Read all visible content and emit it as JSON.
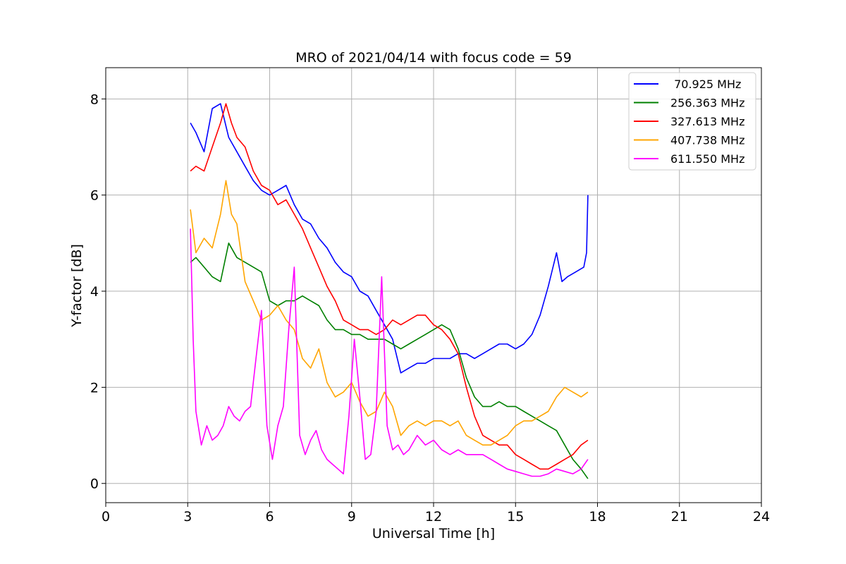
{
  "chart_data": {
    "type": "line",
    "title": "MRO of 2021/04/14 with focus code = 59",
    "xlabel": "Universal Time [h]",
    "ylabel": "Y-factor [dB]",
    "xlim": [
      0,
      24
    ],
    "ylim": [
      -0.4,
      8.65
    ],
    "xticks": [
      0,
      3,
      6,
      9,
      12,
      15,
      18,
      21,
      24
    ],
    "yticks": [
      0,
      2,
      4,
      6,
      8
    ],
    "grid": true,
    "legend_position": "top-right",
    "series": [
      {
        "name": " 70.925 MHz",
        "color": "#0000ff",
        "x": [
          3.1,
          3.3,
          3.6,
          3.9,
          4.2,
          4.5,
          4.8,
          5.1,
          5.4,
          5.7,
          6.0,
          6.3,
          6.6,
          6.9,
          7.2,
          7.5,
          7.8,
          8.1,
          8.4,
          8.7,
          9.0,
          9.3,
          9.6,
          9.9,
          10.2,
          10.5,
          10.8,
          11.1,
          11.4,
          11.7,
          12.0,
          12.3,
          12.6,
          12.9,
          13.2,
          13.5,
          13.8,
          14.1,
          14.4,
          14.7,
          15.0,
          15.3,
          15.6,
          15.9,
          16.2,
          16.5,
          16.7,
          16.9,
          17.2,
          17.5,
          17.6,
          17.65
        ],
        "y": [
          7.5,
          7.3,
          6.9,
          7.8,
          7.9,
          7.2,
          6.9,
          6.6,
          6.3,
          6.1,
          6.0,
          6.1,
          6.2,
          5.8,
          5.5,
          5.4,
          5.1,
          4.9,
          4.6,
          4.4,
          4.3,
          4.0,
          3.9,
          3.6,
          3.3,
          3.0,
          2.3,
          2.4,
          2.5,
          2.5,
          2.6,
          2.6,
          2.6,
          2.7,
          2.7,
          2.6,
          2.7,
          2.8,
          2.9,
          2.9,
          2.8,
          2.9,
          3.1,
          3.5,
          4.1,
          4.8,
          4.2,
          4.3,
          4.4,
          4.5,
          4.8,
          6.0
        ]
      },
      {
        "name": "256.363 MHz",
        "color": "#008000",
        "x": [
          3.1,
          3.3,
          3.6,
          3.9,
          4.2,
          4.5,
          4.8,
          5.1,
          5.4,
          5.7,
          6.0,
          6.3,
          6.6,
          6.9,
          7.2,
          7.5,
          7.8,
          8.1,
          8.4,
          8.7,
          9.0,
          9.3,
          9.6,
          9.9,
          10.2,
          10.5,
          10.8,
          11.1,
          11.4,
          11.7,
          12.0,
          12.3,
          12.6,
          12.9,
          13.2,
          13.5,
          13.8,
          14.1,
          14.4,
          14.7,
          15.0,
          15.3,
          15.6,
          15.9,
          16.2,
          16.5,
          16.8,
          17.1,
          17.4,
          17.65
        ],
        "y": [
          4.6,
          4.7,
          4.5,
          4.3,
          4.2,
          5.0,
          4.7,
          4.6,
          4.5,
          4.4,
          3.8,
          3.7,
          3.8,
          3.8,
          3.9,
          3.8,
          3.7,
          3.4,
          3.2,
          3.2,
          3.1,
          3.1,
          3.0,
          3.0,
          3.0,
          2.9,
          2.8,
          2.9,
          3.0,
          3.1,
          3.2,
          3.3,
          3.2,
          2.8,
          2.2,
          1.8,
          1.6,
          1.6,
          1.7,
          1.6,
          1.6,
          1.5,
          1.4,
          1.3,
          1.2,
          1.1,
          0.8,
          0.5,
          0.3,
          0.1
        ]
      },
      {
        "name": "327.613 MHz",
        "color": "#ff0000",
        "x": [
          3.1,
          3.3,
          3.6,
          3.9,
          4.2,
          4.4,
          4.6,
          4.8,
          5.1,
          5.4,
          5.7,
          6.0,
          6.3,
          6.6,
          6.9,
          7.2,
          7.5,
          7.8,
          8.1,
          8.4,
          8.7,
          9.0,
          9.3,
          9.6,
          9.9,
          10.2,
          10.5,
          10.8,
          11.1,
          11.4,
          11.7,
          12.0,
          12.3,
          12.6,
          12.9,
          13.2,
          13.5,
          13.8,
          14.1,
          14.4,
          14.7,
          15.0,
          15.3,
          15.6,
          15.9,
          16.2,
          16.5,
          16.8,
          17.1,
          17.4,
          17.65
        ],
        "y": [
          6.5,
          6.6,
          6.5,
          7.0,
          7.5,
          7.9,
          7.5,
          7.2,
          7.0,
          6.5,
          6.2,
          6.1,
          5.8,
          5.9,
          5.6,
          5.3,
          4.9,
          4.5,
          4.1,
          3.8,
          3.4,
          3.3,
          3.2,
          3.2,
          3.1,
          3.2,
          3.4,
          3.3,
          3.4,
          3.5,
          3.5,
          3.3,
          3.2,
          3.0,
          2.7,
          2.0,
          1.4,
          1.0,
          0.9,
          0.8,
          0.8,
          0.6,
          0.5,
          0.4,
          0.3,
          0.3,
          0.4,
          0.5,
          0.6,
          0.8,
          0.9
        ]
      },
      {
        "name": "407.738 MHz",
        "color": "#ffa500",
        "x": [
          3.1,
          3.3,
          3.6,
          3.9,
          4.2,
          4.4,
          4.6,
          4.8,
          5.1,
          5.4,
          5.7,
          6.0,
          6.3,
          6.6,
          6.9,
          7.2,
          7.5,
          7.8,
          8.1,
          8.4,
          8.7,
          9.0,
          9.3,
          9.6,
          9.9,
          10.2,
          10.5,
          10.8,
          11.1,
          11.4,
          11.7,
          12.0,
          12.3,
          12.6,
          12.9,
          13.2,
          13.5,
          13.8,
          14.1,
          14.4,
          14.7,
          15.0,
          15.3,
          15.6,
          15.9,
          16.2,
          16.5,
          16.8,
          17.1,
          17.4,
          17.65
        ],
        "y": [
          5.7,
          4.8,
          5.1,
          4.9,
          5.6,
          6.3,
          5.6,
          5.4,
          4.2,
          3.8,
          3.4,
          3.5,
          3.7,
          3.4,
          3.2,
          2.6,
          2.4,
          2.8,
          2.1,
          1.8,
          1.9,
          2.1,
          1.7,
          1.4,
          1.5,
          1.9,
          1.6,
          1.0,
          1.2,
          1.3,
          1.2,
          1.3,
          1.3,
          1.2,
          1.3,
          1.0,
          0.9,
          0.8,
          0.8,
          0.9,
          1.0,
          1.2,
          1.3,
          1.3,
          1.4,
          1.5,
          1.8,
          2.0,
          1.9,
          1.8,
          1.9
        ]
      },
      {
        "name": "611.550 MHz",
        "color": "#ff00ff",
        "x": [
          3.1,
          3.2,
          3.3,
          3.5,
          3.7,
          3.9,
          4.1,
          4.3,
          4.5,
          4.7,
          4.9,
          5.1,
          5.3,
          5.5,
          5.7,
          5.9,
          6.1,
          6.3,
          6.5,
          6.7,
          6.9,
          7.1,
          7.3,
          7.5,
          7.7,
          7.9,
          8.1,
          8.3,
          8.5,
          8.7,
          8.9,
          9.1,
          9.3,
          9.5,
          9.7,
          9.9,
          10.1,
          10.3,
          10.5,
          10.7,
          10.9,
          11.1,
          11.4,
          11.7,
          12.0,
          12.3,
          12.6,
          12.9,
          13.2,
          13.5,
          13.8,
          14.1,
          14.4,
          14.7,
          15.0,
          15.3,
          15.6,
          15.9,
          16.2,
          16.5,
          16.8,
          17.1,
          17.4,
          17.65
        ],
        "y": [
          5.3,
          3.0,
          1.5,
          0.8,
          1.2,
          0.9,
          1.0,
          1.2,
          1.6,
          1.4,
          1.3,
          1.5,
          1.6,
          2.6,
          3.6,
          1.2,
          0.5,
          1.2,
          1.6,
          3.2,
          4.5,
          1.0,
          0.6,
          0.9,
          1.1,
          0.7,
          0.5,
          0.4,
          0.3,
          0.2,
          1.4,
          3.0,
          1.8,
          0.5,
          0.6,
          1.5,
          4.3,
          1.2,
          0.7,
          0.8,
          0.6,
          0.7,
          1.0,
          0.8,
          0.9,
          0.7,
          0.6,
          0.7,
          0.6,
          0.6,
          0.6,
          0.5,
          0.4,
          0.3,
          0.25,
          0.2,
          0.15,
          0.15,
          0.2,
          0.3,
          0.25,
          0.2,
          0.3,
          0.5
        ]
      }
    ]
  }
}
